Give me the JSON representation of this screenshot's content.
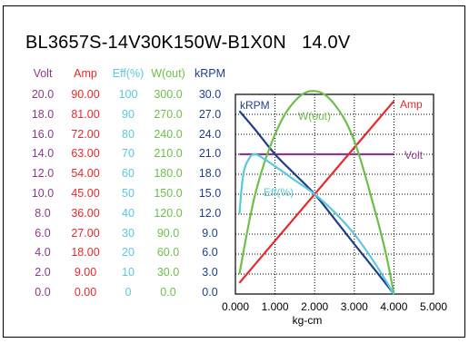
{
  "title": "BL3657S-14V30K150W-B1X0N   14.0V",
  "colors": {
    "volt": "#8b3a8b",
    "amp": "#e8282a",
    "eff": "#5bc8de",
    "wout": "#6cc04a",
    "krpm": "#1f3f8c"
  },
  "columns": [
    {
      "key": "volt",
      "header": "Volt",
      "values": [
        "20.0",
        "18.0",
        "16.0",
        "14.0",
        "12.0",
        "10.0",
        "8.0",
        "6.0",
        "4.0",
        "2.0",
        "0.0"
      ]
    },
    {
      "key": "amp",
      "header": "Amp",
      "values": [
        "90.00",
        "81.00",
        "72.00",
        "63.00",
        "54.00",
        "45.00",
        "36.00",
        "27.00",
        "18.00",
        "9.00",
        "0.00"
      ]
    },
    {
      "key": "eff",
      "header": "Eff(%)",
      "values": [
        "100",
        "90",
        "80",
        "70",
        "60",
        "50",
        "40",
        "30",
        "20",
        "10",
        "0"
      ]
    },
    {
      "key": "wout",
      "header": "W(out)",
      "values": [
        "300.0",
        "270.0",
        "240.0",
        "210.0",
        "180.0",
        "150.0",
        "120.0",
        "90.0",
        "60.0",
        "30.0",
        "0.0"
      ]
    },
    {
      "key": "krpm",
      "header": "kRPM",
      "values": [
        "30.0",
        "27.0",
        "24.0",
        "21.0",
        "18.0",
        "15.0",
        "12.0",
        "9.0",
        "6.0",
        "3.0",
        "0.0"
      ]
    }
  ],
  "chart_data": {
    "type": "line",
    "xlabel": "kg-cm",
    "xlim": [
      0,
      5
    ],
    "x_ticks": [
      "0.000",
      "1.000",
      "2.000",
      "3.000",
      "4.000",
      "5.000"
    ],
    "grid": true,
    "series": [
      {
        "name": "Volt",
        "axis": "volt",
        "x": [
          0.1,
          4.0
        ],
        "y": [
          14.0,
          14.0
        ]
      },
      {
        "name": "Amp",
        "axis": "amp",
        "x": [
          0.1,
          1.0,
          2.0,
          3.0,
          4.0
        ],
        "y": [
          5.0,
          24.0,
          45.0,
          66.0,
          87.0
        ]
      },
      {
        "name": "kRPM",
        "axis": "krpm",
        "x": [
          0.1,
          0.5,
          1.0,
          1.5,
          2.0,
          2.5,
          3.0,
          3.5,
          4.0
        ],
        "y": [
          27.5,
          24.7,
          21.0,
          18.0,
          15.0,
          11.3,
          7.5,
          3.8,
          0.0
        ]
      },
      {
        "name": "W(out)",
        "axis": "wout",
        "x": [
          0.1,
          0.5,
          1.0,
          1.5,
          2.0,
          2.5,
          3.0,
          3.5,
          3.8,
          4.0
        ],
        "y": [
          30.0,
          150.0,
          240.0,
          290.0,
          305.0,
          285.0,
          230.0,
          130.0,
          60.0,
          0.0
        ]
      },
      {
        "name": "Eff(%)",
        "axis": "eff",
        "x": [
          0.1,
          0.2,
          0.35,
          0.5,
          0.7,
          1.0,
          1.5,
          2.0,
          2.5,
          3.0,
          3.5,
          4.0
        ],
        "y": [
          40.0,
          60.0,
          68.0,
          70.0,
          68.0,
          64.0,
          57.0,
          50.0,
          41.0,
          30.0,
          16.0,
          0.0
        ]
      }
    ],
    "labels": {
      "krpm": "kRPM",
      "wout": "W(out)",
      "amp": "Amp",
      "volt": "Volt",
      "eff": "Eff(%)"
    }
  }
}
